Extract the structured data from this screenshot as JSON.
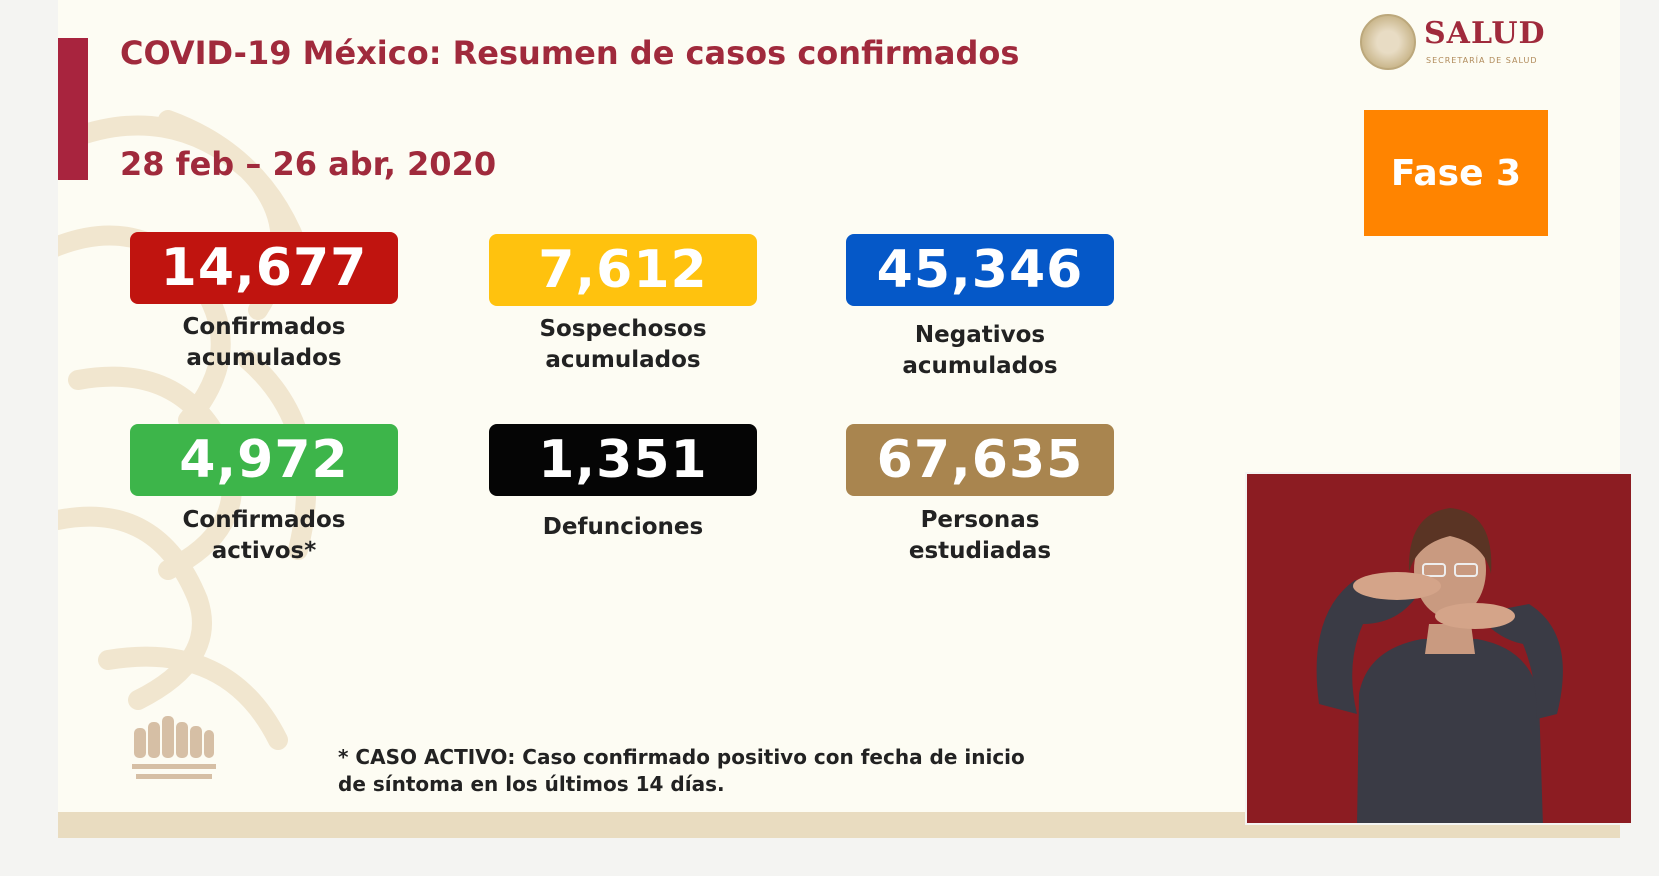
{
  "header": {
    "title": "COVID-19 México: Resumen de casos confirmados",
    "date_range": "28 feb – 26 abr, 2020"
  },
  "logo": {
    "name": "SALUD",
    "subtitle": "SECRETARÍA DE SALUD"
  },
  "phase": {
    "label": "Fase 3",
    "color": "#ff8400"
  },
  "stats": [
    {
      "value": "14,677",
      "label_line1": "Confirmados",
      "label_line2": "acumulados",
      "color": "#c0140f"
    },
    {
      "value": "7,612",
      "label_line1": "Sospechosos",
      "label_line2": "acumulados",
      "color": "#ffc20e"
    },
    {
      "value": "45,346",
      "label_line1": "Negativos",
      "label_line2": "acumulados",
      "color": "#0558c8"
    },
    {
      "value": "4,972",
      "label_line1": "Confirmados",
      "label_line2": "activos*",
      "color": "#3db54a"
    },
    {
      "value": "1,351",
      "label_line1": "Defunciones",
      "label_line2": "",
      "color": "#050505"
    },
    {
      "value": "67,635",
      "label_line1": "Personas",
      "label_line2": "estudiadas",
      "color": "#a9854f"
    }
  ],
  "footnote": {
    "line1": "* CASO ACTIVO: Caso confirmado positivo con fecha de inicio",
    "line2": "de síntoma en los últimos 14 días."
  },
  "colors": {
    "brand": "#a02a3c",
    "background": "#fdfcf3",
    "interpreter_bg": "#8c1c22"
  }
}
